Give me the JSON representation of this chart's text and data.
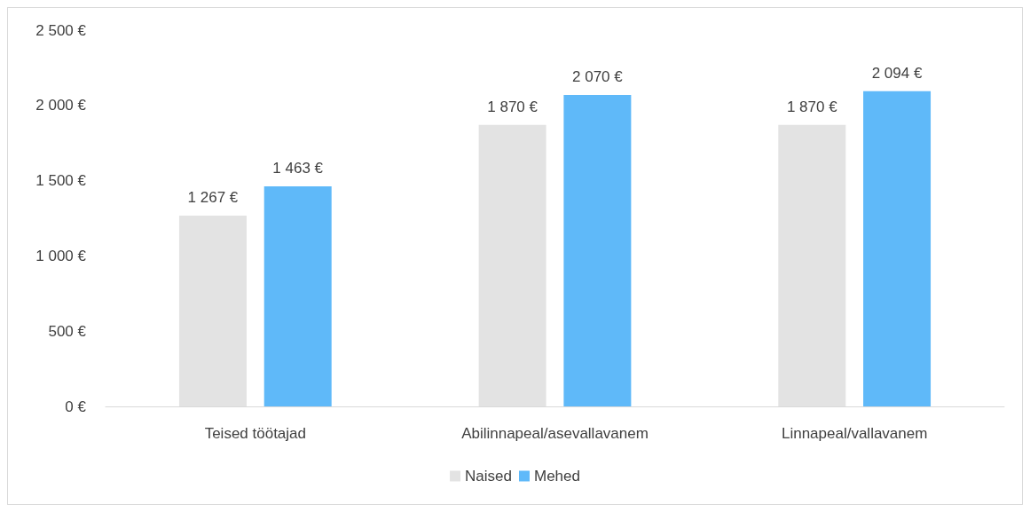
{
  "chart_data": {
    "type": "bar",
    "categories": [
      "Teised töötajad",
      "Abilinnapeal/asevallavanem",
      "Linnapeal/vallavanem"
    ],
    "series": [
      {
        "name": "Naised",
        "color": "#e3e3e3",
        "values": [
          1267,
          1870,
          1870
        ],
        "value_labels": [
          "1 267 €",
          "1 870 €",
          "1 870 €"
        ]
      },
      {
        "name": "Mehed",
        "color": "#5fb9f9",
        "values": [
          1463,
          2070,
          2094
        ],
        "value_labels": [
          "1 463 €",
          "2 070 €",
          "2 094 €"
        ]
      }
    ],
    "ylim": [
      0,
      2500
    ],
    "yticks": [
      {
        "value": 0,
        "label": "0 €"
      },
      {
        "value": 500,
        "label": "500 €"
      },
      {
        "value": 1000,
        "label": "1 000 €"
      },
      {
        "value": 1500,
        "label": "1 500 €"
      },
      {
        "value": 2000,
        "label": "2 000 €"
      },
      {
        "value": 2500,
        "label": "2 500 €"
      }
    ],
    "grid": false,
    "legend": "bottom"
  }
}
